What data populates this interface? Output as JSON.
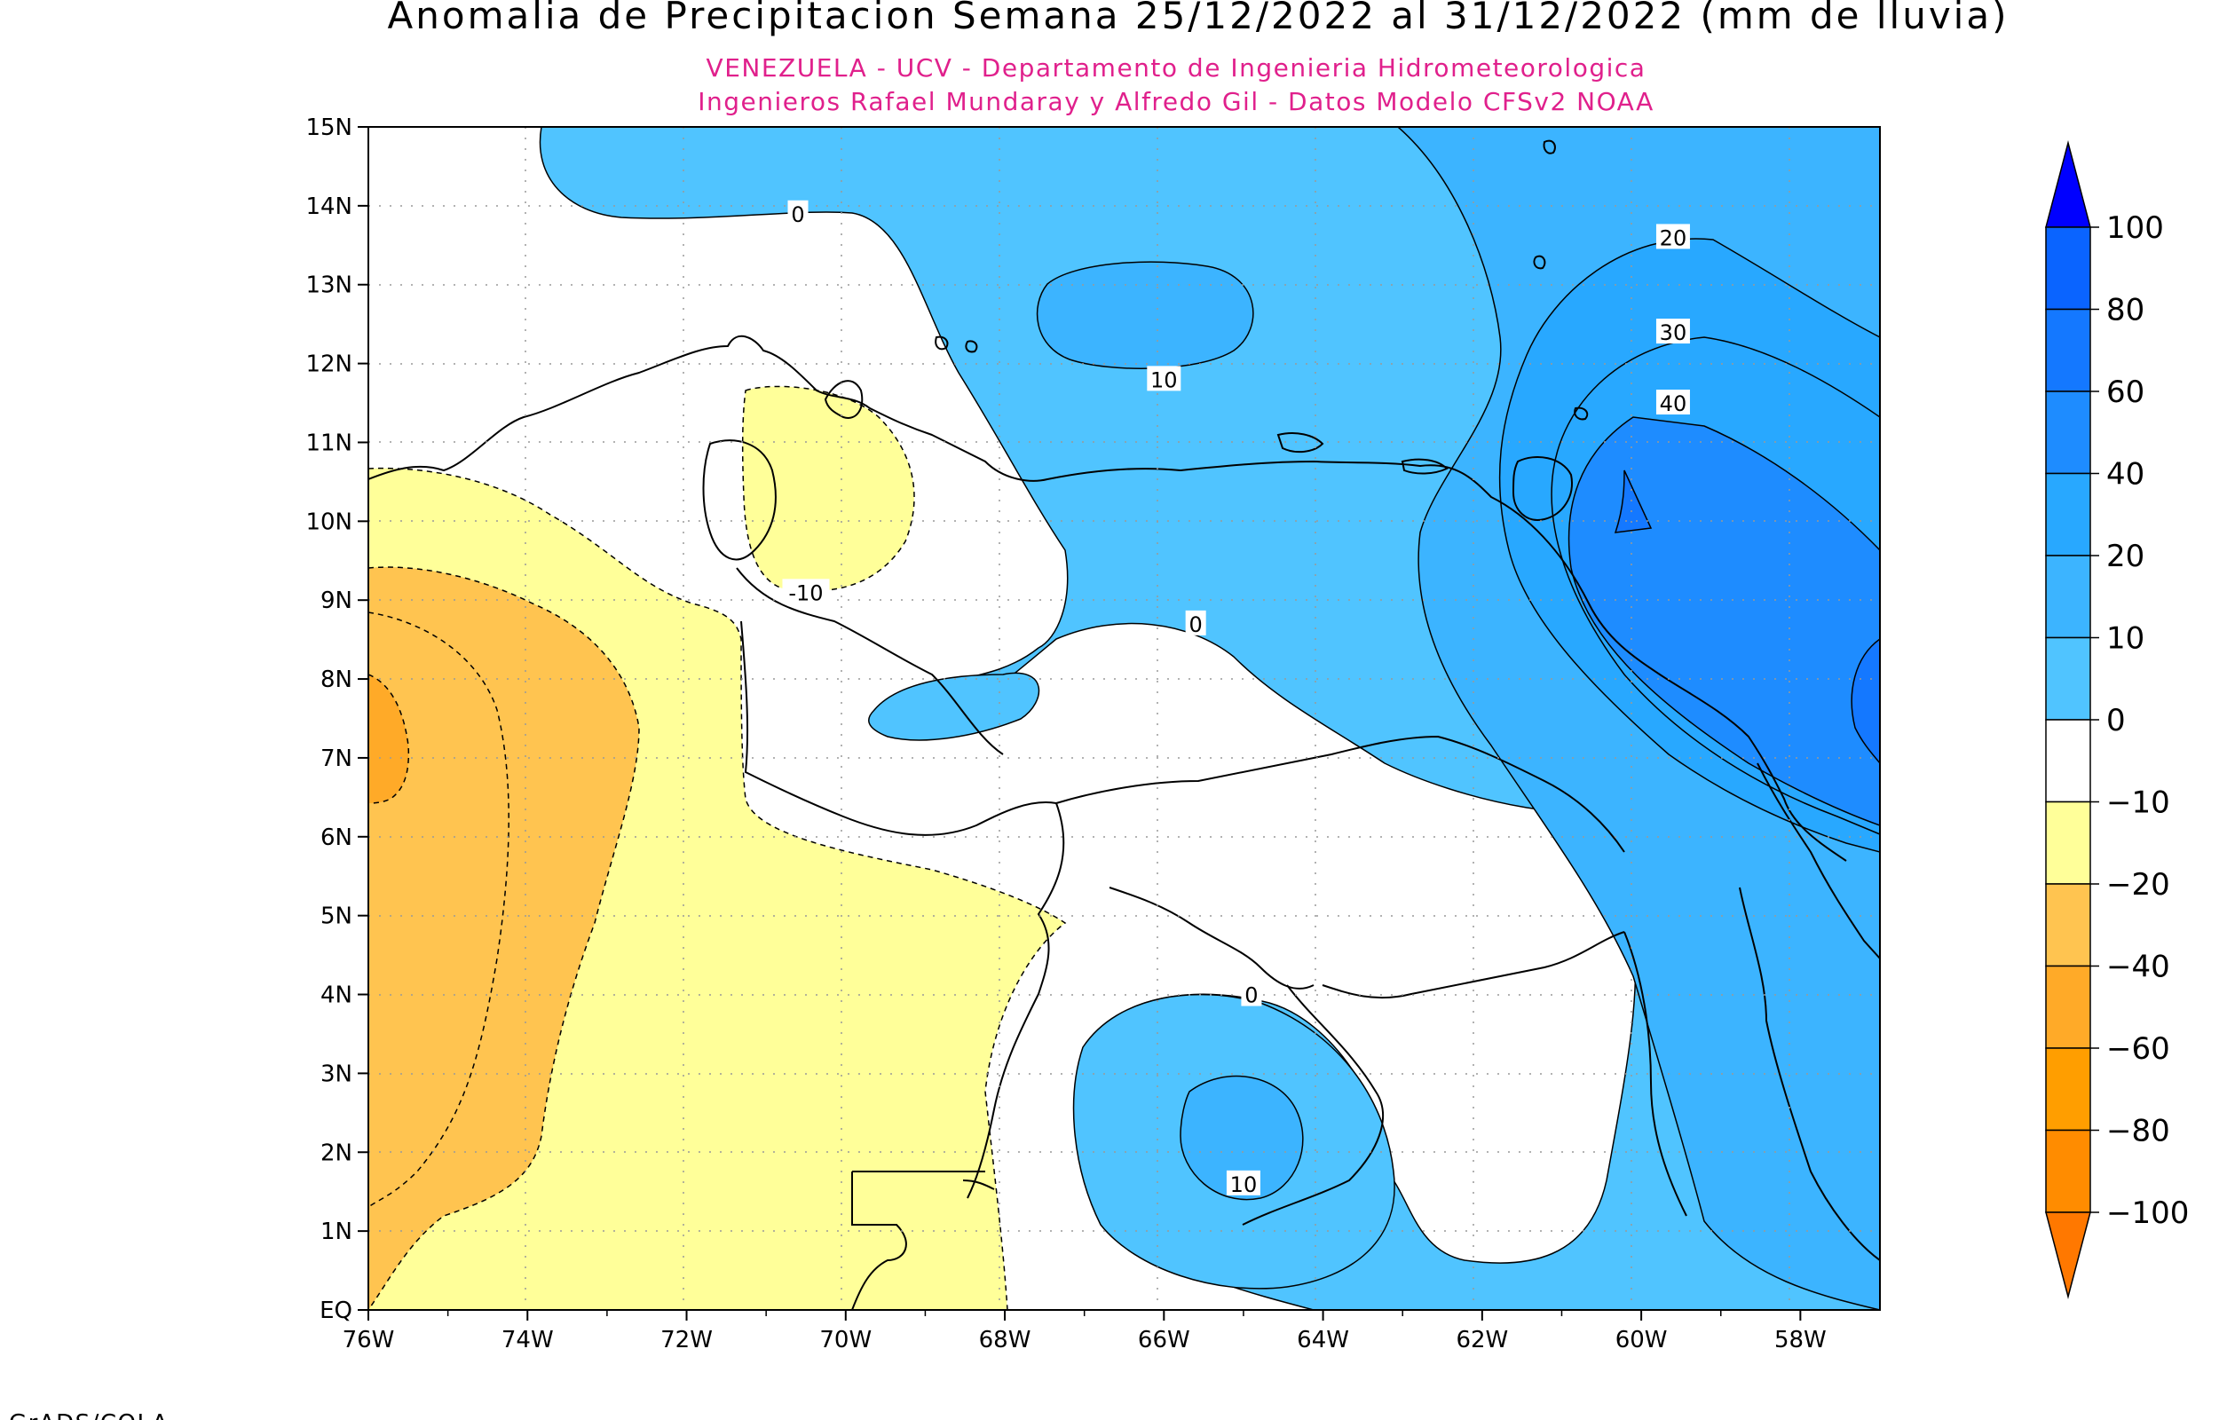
{
  "title": "Anomalia de Precipitacion Semana 25/12/2022 al 31/12/2022 (mm de lluvia)",
  "subtitle_line1": "VENEZUELA - UCV - Departamento de Ingenieria Hidrometeorologica",
  "subtitle_line2": "Ingenieros Rafael Mundaray y Alfredo Gil - Datos Modelo CFSv2 NOAA",
  "footer": "GrADS/COLA",
  "colors": {
    "title": "#000000",
    "subtitle": "#e0208c",
    "ocean_pos10": "#50c4ff",
    "pos20": "#28a8ff",
    "pos40": "#1e8cff",
    "neg10": "#ffff99",
    "neg20": "#ffc450",
    "neg40": "#ffaa28",
    "white": "#ffffff"
  },
  "map": {
    "lon_range": [
      -76,
      -57
    ],
    "lat_range": [
      0,
      15
    ],
    "x_ticks": [
      "76W",
      "74W",
      "72W",
      "70W",
      "68W",
      "66W",
      "64W",
      "62W",
      "60W",
      "58W"
    ],
    "y_ticks": [
      "EQ",
      "1N",
      "2N",
      "3N",
      "4N",
      "5N",
      "6N",
      "7N",
      "8N",
      "9N",
      "10N",
      "11N",
      "12N",
      "13N",
      "14N",
      "15N"
    ],
    "contour_labels": [
      {
        "text": "0",
        "lon": -70.6,
        "lat": 13.9
      },
      {
        "text": "10",
        "lon": -66.0,
        "lat": 11.8
      },
      {
        "text": "20",
        "lon": -59.6,
        "lat": 13.6
      },
      {
        "text": "30",
        "lon": -59.6,
        "lat": 12.4
      },
      {
        "text": "40",
        "lon": -59.6,
        "lat": 11.5
      },
      {
        "text": "-10",
        "lon": -70.5,
        "lat": 9.1
      },
      {
        "text": "0",
        "lon": -65.6,
        "lat": 8.7
      },
      {
        "text": "0",
        "lon": -64.9,
        "lat": 4.0
      },
      {
        "text": "10",
        "lon": -65.0,
        "lat": 1.6
      }
    ]
  },
  "colorbar": {
    "levels": [
      "100",
      "80",
      "60",
      "40",
      "20",
      "10",
      "0",
      "-10",
      "-20",
      "-40",
      "-60",
      "-80",
      "-100"
    ],
    "segment_colors": [
      "#0a64ff",
      "#1478ff",
      "#1e8cff",
      "#28a8ff",
      "#3cb4ff",
      "#50c4ff",
      "#ffffff",
      "#ffff99",
      "#ffc450",
      "#ffaa28",
      "#ff9e00",
      "#ff8c00"
    ],
    "top_arrow_color": "#0000ff",
    "bottom_arrow_color": "#ff7800"
  }
}
